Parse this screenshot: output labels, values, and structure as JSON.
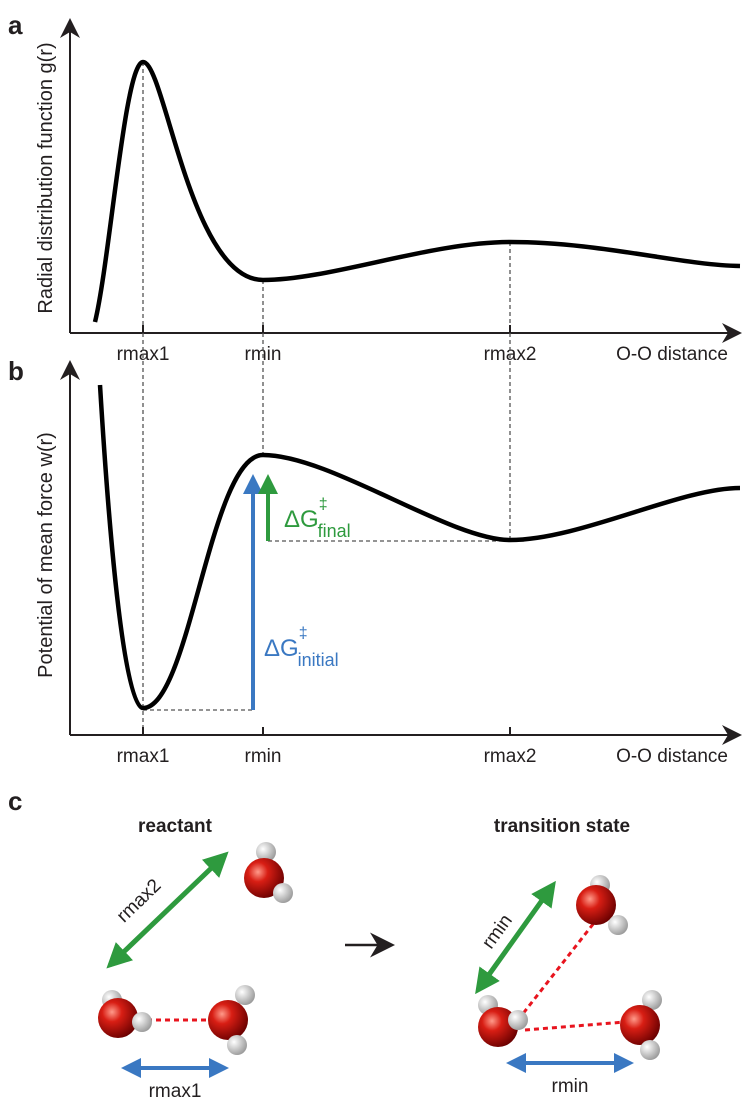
{
  "panels": [
    {
      "label": "a",
      "y_axis_label": "Radial distribution function g(r)",
      "x_axis_label": "O-O distance",
      "ticks": [
        "rmax1",
        "rmin",
        "rmax2"
      ]
    },
    {
      "label": "b",
      "y_axis_label": "Potential of mean force w(r)",
      "x_axis_label": "O-O distance",
      "ticks": [
        "rmax1",
        "rmin",
        "rmax2"
      ],
      "annotations": {
        "final": {
          "symbol": "ΔG",
          "superscript": "‡",
          "subscript": "final"
        },
        "initial": {
          "symbol": "ΔG",
          "superscript": "‡",
          "subscript": "initial"
        }
      }
    },
    {
      "label": "c",
      "reactant": {
        "title": "reactant",
        "distances": [
          "rmax2",
          "rmax1"
        ]
      },
      "transition_state": {
        "title": "transition state",
        "distances": [
          "rmin",
          "rmin"
        ]
      }
    }
  ]
}
